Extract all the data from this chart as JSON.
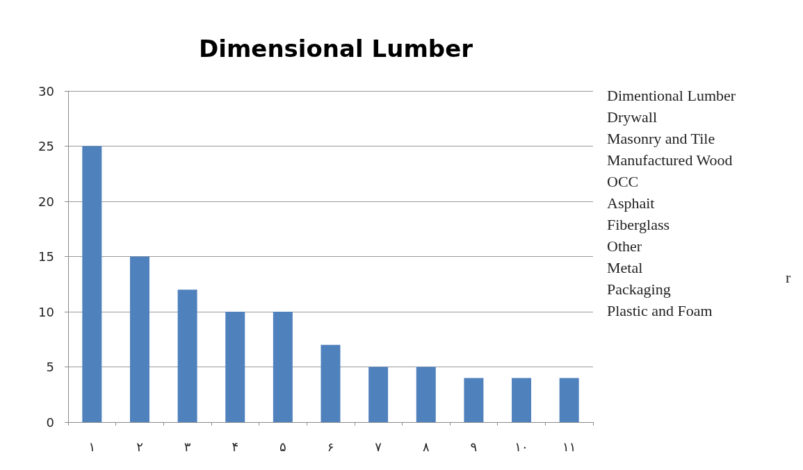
{
  "chart_data": {
    "type": "bar",
    "title": "Dimensional Lumber",
    "categories": [
      "۱",
      "۲",
      "۳",
      "۴",
      "۵",
      "۶",
      "۷",
      "۸",
      "۹",
      "۱۰",
      "۱۱"
    ],
    "values": [
      25,
      15,
      12,
      10,
      10,
      7,
      5,
      5,
      4,
      4,
      4
    ],
    "color": "#4f81bd",
    "ylim": [
      0,
      30
    ],
    "yticks": [
      0,
      5,
      10,
      15,
      20,
      25,
      30
    ],
    "grid": "y",
    "annotations": [
      "Dimentional Lumber",
      "Drywall",
      "Masonry and Tile",
      "Manufactured Wood",
      "OCC",
      "Asphait",
      "Fiberglass",
      "Other",
      "Metal",
      "Packaging",
      "Plastic and Foam",
      "r"
    ]
  }
}
